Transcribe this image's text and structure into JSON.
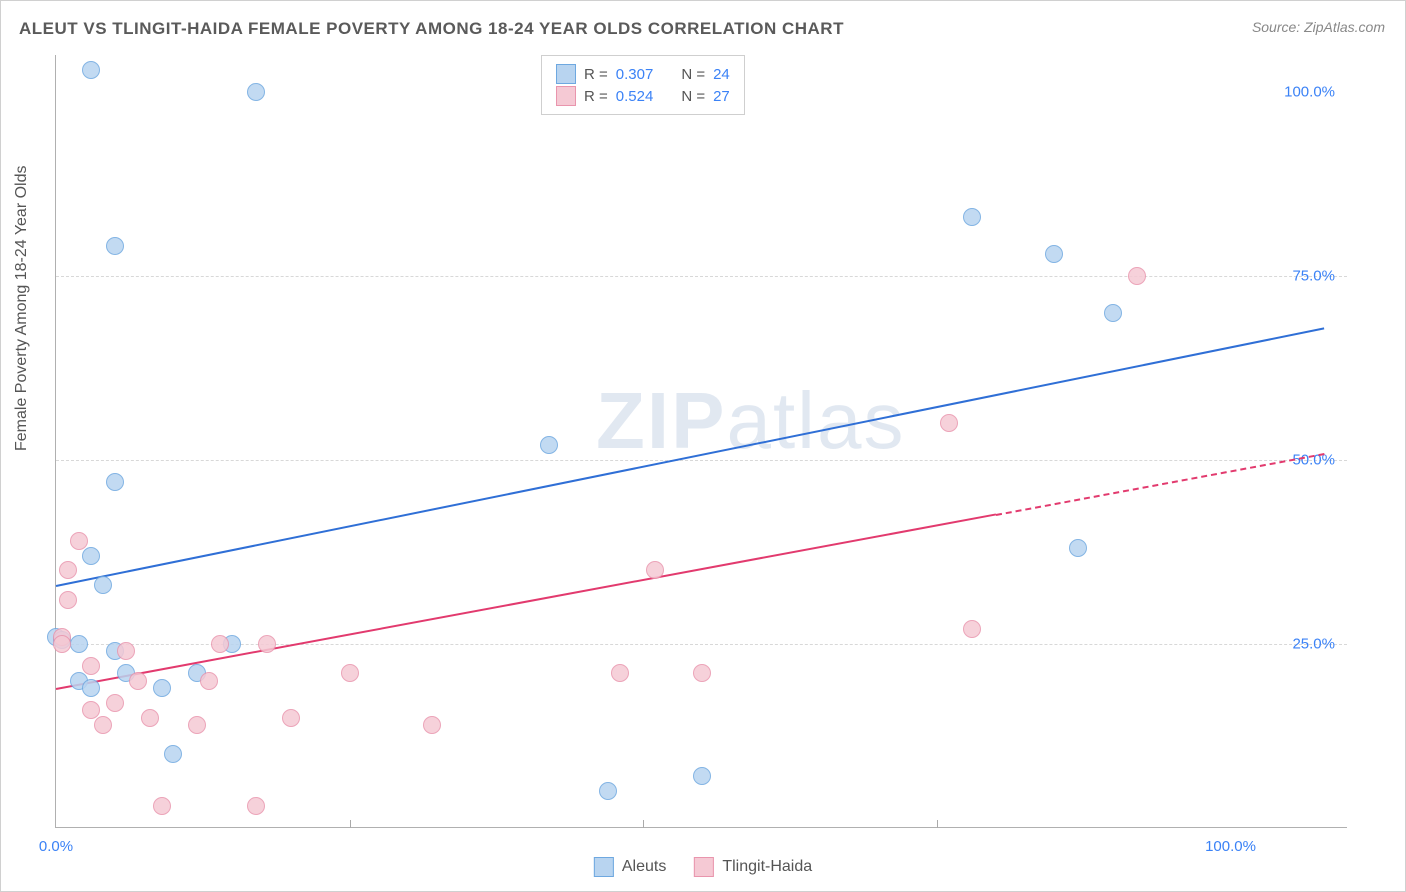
{
  "title": "ALEUT VS TLINGIT-HAIDA FEMALE POVERTY AMONG 18-24 YEAR OLDS CORRELATION CHART",
  "source": "Source: ZipAtlas.com",
  "yaxis_label": "Female Poverty Among 18-24 Year Olds",
  "watermark_bold": "ZIP",
  "watermark_rest": "atlas",
  "chart": {
    "type": "scatter",
    "background_color": "#ffffff",
    "grid_color": "#d8d8d8",
    "xlim": [
      0,
      110
    ],
    "ylim": [
      0,
      105
    ],
    "xtick_visible": [
      0,
      100
    ],
    "ytick_visible": [
      25,
      50,
      75,
      100
    ],
    "xtick_minor": [
      25,
      50,
      75
    ],
    "ytick_labels": {
      "25": "25.0%",
      "50": "50.0%",
      "75": "75.0%",
      "100": "100.0%"
    },
    "xtick_labels": {
      "0": "0.0%",
      "100": "100.0%"
    },
    "yaxis_label_fontsize": 16,
    "tick_label_color": "#3b82f6",
    "tick_fontsize": 15,
    "point_radius": 9,
    "point_border_width": 1.5,
    "series": [
      {
        "name": "Aleuts",
        "fill_color": "#b8d4f0",
        "stroke_color": "#6ea8e0",
        "R": "0.307",
        "N": "24",
        "trend": {
          "x1": 0,
          "y1": 33,
          "x2": 108,
          "y2": 68,
          "width": 2.5,
          "color": "#2f6fd6",
          "dashed_from_x": null
        },
        "points": [
          {
            "x": 3,
            "y": 103
          },
          {
            "x": 17,
            "y": 100
          },
          {
            "x": 5,
            "y": 79
          },
          {
            "x": 78,
            "y": 83
          },
          {
            "x": 85,
            "y": 78
          },
          {
            "x": 90,
            "y": 70
          },
          {
            "x": 42,
            "y": 52
          },
          {
            "x": 5,
            "y": 47
          },
          {
            "x": 87,
            "y": 38
          },
          {
            "x": 3,
            "y": 37
          },
          {
            "x": 0,
            "y": 26
          },
          {
            "x": 0.5,
            "y": 25.5
          },
          {
            "x": 2,
            "y": 25
          },
          {
            "x": 5,
            "y": 24
          },
          {
            "x": 6,
            "y": 21
          },
          {
            "x": 9,
            "y": 19
          },
          {
            "x": 15,
            "y": 25
          },
          {
            "x": 4,
            "y": 33
          },
          {
            "x": 10,
            "y": 10
          },
          {
            "x": 47,
            "y": 5
          },
          {
            "x": 55,
            "y": 7
          },
          {
            "x": 2,
            "y": 20
          },
          {
            "x": 12,
            "y": 21
          },
          {
            "x": 3,
            "y": 19
          }
        ]
      },
      {
        "name": "Tlingit-Haida",
        "fill_color": "#f5c9d4",
        "stroke_color": "#e995ad",
        "R": "0.524",
        "N": "27",
        "trend": {
          "x1": 0,
          "y1": 19,
          "x2": 108,
          "y2": 51,
          "width": 2,
          "color": "#e23a6e",
          "dashed_from_x": 80
        },
        "points": [
          {
            "x": 92,
            "y": 75
          },
          {
            "x": 76,
            "y": 55
          },
          {
            "x": 78,
            "y": 27
          },
          {
            "x": 51,
            "y": 35
          },
          {
            "x": 55,
            "y": 21
          },
          {
            "x": 48,
            "y": 21
          },
          {
            "x": 32,
            "y": 14
          },
          {
            "x": 25,
            "y": 21
          },
          {
            "x": 20,
            "y": 15
          },
          {
            "x": 18,
            "y": 25
          },
          {
            "x": 14,
            "y": 25
          },
          {
            "x": 13,
            "y": 20
          },
          {
            "x": 12,
            "y": 14
          },
          {
            "x": 8,
            "y": 15
          },
          {
            "x": 7,
            "y": 20
          },
          {
            "x": 5,
            "y": 17
          },
          {
            "x": 4,
            "y": 14
          },
          {
            "x": 3,
            "y": 22
          },
          {
            "x": 2,
            "y": 39
          },
          {
            "x": 1,
            "y": 35
          },
          {
            "x": 1,
            "y": 31
          },
          {
            "x": 0.5,
            "y": 26
          },
          {
            "x": 9,
            "y": 3
          },
          {
            "x": 17,
            "y": 3
          },
          {
            "x": 3,
            "y": 16
          },
          {
            "x": 6,
            "y": 24
          },
          {
            "x": 0.5,
            "y": 25
          }
        ]
      }
    ]
  },
  "legend_top": {
    "r_label": "R =",
    "n_label": "N ="
  },
  "legend_bottom": {
    "items": [
      "Aleuts",
      "Tlingit-Haida"
    ]
  }
}
